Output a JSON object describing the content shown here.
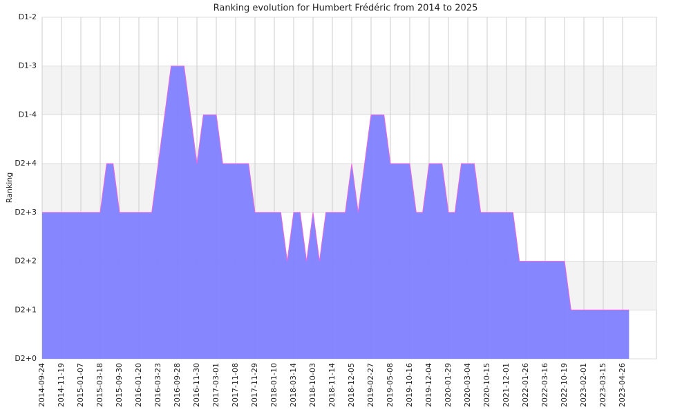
{
  "chart_data": {
    "type": "area",
    "title": "Ranking evolution for Humbert Frédéric from 2014 to 2025",
    "y_label": "Ranking",
    "categories": [
      "2014-09-24",
      null,
      null,
      "2014-11-19",
      null,
      null,
      "2015-01-07",
      null,
      null,
      "2015-03-18",
      null,
      null,
      "2015-09-30",
      null,
      null,
      "2016-01-20",
      null,
      null,
      "2016-03-23",
      null,
      null,
      "2016-09-28",
      null,
      null,
      "2016-11-30",
      null,
      null,
      "2017-03-01",
      null,
      null,
      "2017-11-08",
      null,
      null,
      "2017-11-29",
      null,
      null,
      "2018-01-10",
      null,
      null,
      "2018-03-14",
      null,
      null,
      "2018-10-03",
      null,
      null,
      "2018-11-14",
      null,
      null,
      "2018-12-05",
      null,
      null,
      "2019-02-27",
      null,
      null,
      "2019-05-08",
      null,
      null,
      "2019-10-16",
      null,
      null,
      "2019-12-04",
      null,
      null,
      "2020-01-29",
      null,
      null,
      "2020-03-04",
      null,
      null,
      "2020-10-15",
      null,
      null,
      "2021-12-01",
      null,
      null,
      "2022-01-26",
      null,
      null,
      "2022-03-16",
      null,
      null,
      "2022-10-19",
      null,
      null,
      "2023-02-01",
      null,
      null,
      "2023-03-15",
      null,
      null,
      "2023-04-26",
      null
    ],
    "values": [
      3,
      3,
      3,
      3,
      3,
      3,
      3,
      3,
      3,
      3,
      4,
      4,
      3,
      3,
      3,
      3,
      3,
      3,
      4,
      5,
      6,
      6,
      6,
      5,
      4,
      5,
      5,
      5,
      4,
      4,
      4,
      4,
      4,
      3,
      3,
      3,
      3,
      3,
      2,
      3,
      3,
      2,
      3,
      2,
      3,
      3,
      3,
      3,
      4,
      3,
      4,
      5,
      5,
      5,
      4,
      4,
      4,
      4,
      3,
      3,
      4,
      4,
      4,
      3,
      3,
      4,
      4,
      4,
      3,
      3,
      3,
      3,
      3,
      3,
      2,
      2,
      2,
      2,
      2,
      2,
      2,
      2,
      1,
      1,
      1,
      1,
      1,
      1,
      1,
      1,
      1,
      1
    ],
    "color": "#8080ff",
    "line_color": "#ee66dd",
    "ylim": [
      0,
      7
    ],
    "yticks": [
      {
        "value": 0,
        "label": "D2+0"
      },
      {
        "value": 1,
        "label": "D2+1"
      },
      {
        "value": 2,
        "label": "D2+2"
      },
      {
        "value": 3,
        "label": "D2+3"
      },
      {
        "value": 4,
        "label": "D2+4"
      },
      {
        "value": 5,
        "label": "D1-4"
      },
      {
        "value": 6,
        "label": "D1-3"
      },
      {
        "value": 7,
        "label": "D1-2"
      }
    ],
    "grid": true
  }
}
